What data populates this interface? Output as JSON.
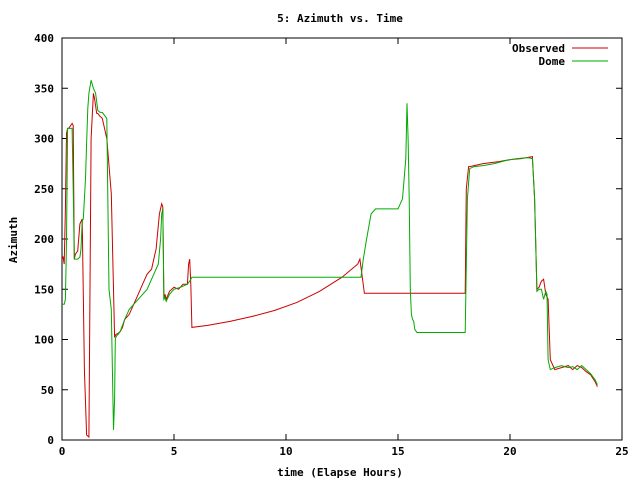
{
  "chart_data": {
    "type": "line",
    "title": "5: Azimuth vs. Time",
    "xlabel": "time (Elapse Hours)",
    "ylabel": "Azimuth",
    "xlim": [
      0,
      25
    ],
    "ylim": [
      0,
      400
    ],
    "xticks": [
      0,
      5,
      10,
      15,
      20,
      25
    ],
    "yticks": [
      0,
      50,
      100,
      150,
      200,
      250,
      300,
      350,
      400
    ],
    "grid": false,
    "legend_position": "top-right",
    "series": [
      {
        "name": "Observed",
        "color": "#cc0000",
        "x": [
          0.0,
          0.05,
          0.1,
          0.15,
          0.2,
          0.25,
          0.3,
          0.45,
          0.5,
          0.55,
          0.6,
          0.7,
          0.8,
          0.9,
          1.0,
          1.1,
          1.15,
          1.2,
          1.3,
          1.4,
          1.45,
          1.55,
          1.6,
          1.7,
          1.8,
          2.0,
          2.2,
          2.3,
          2.35,
          2.4,
          2.5,
          2.6,
          2.7,
          2.8,
          3.0,
          3.2,
          3.4,
          3.6,
          3.8,
          4.0,
          4.1,
          4.2,
          4.35,
          4.45,
          4.5,
          4.55,
          4.6,
          4.65,
          4.8,
          5.0,
          5.2,
          5.4,
          5.6,
          5.65,
          5.7,
          5.75,
          5.8,
          6.5,
          7.5,
          8.5,
          9.5,
          10.5,
          11.5,
          12.5,
          13.2,
          13.3,
          13.5,
          14.5,
          16.0,
          17.5,
          18.0,
          18.05,
          18.15,
          18.2,
          18.8,
          19.5,
          20.0,
          20.5,
          21.0,
          21.1,
          21.2,
          21.3,
          21.35,
          21.4,
          21.5,
          21.6,
          21.7,
          21.8,
          22.0,
          22.3,
          22.6,
          22.8,
          23.0,
          23.2,
          23.4,
          23.6,
          23.8,
          23.9
        ],
        "y": [
          180,
          182,
          175,
          230,
          305,
          310,
          310,
          315,
          313,
          180,
          185,
          188,
          215,
          220,
          70,
          5,
          4,
          3,
          300,
          345,
          340,
          325,
          325,
          322,
          320,
          300,
          245,
          150,
          102,
          105,
          106,
          108,
          112,
          120,
          125,
          135,
          145,
          155,
          165,
          170,
          180,
          190,
          225,
          235,
          232,
          140,
          145,
          140,
          148,
          152,
          150,
          155,
          155,
          175,
          180,
          155,
          112,
          114,
          118,
          123,
          129,
          137,
          148,
          162,
          175,
          180,
          146,
          146,
          146,
          146,
          146,
          250,
          272,
          272,
          275,
          277,
          279,
          280,
          282,
          240,
          150,
          152,
          155,
          158,
          160,
          145,
          140,
          80,
          70,
          72,
          74,
          70,
          74,
          72,
          68,
          65,
          58,
          53
        ]
      },
      {
        "name": "Dome",
        "color": "#00aa00",
        "x": [
          0.0,
          0.05,
          0.1,
          0.15,
          0.18,
          0.2,
          0.25,
          0.3,
          0.45,
          0.5,
          0.55,
          0.6,
          0.7,
          0.8,
          0.85,
          0.9,
          0.95,
          1.05,
          1.1,
          1.15,
          1.2,
          1.3,
          1.4,
          1.5,
          1.6,
          1.7,
          1.8,
          2.0,
          2.1,
          2.2,
          2.3,
          2.35,
          2.38,
          2.4,
          2.45,
          2.5,
          2.6,
          2.8,
          3.0,
          3.4,
          3.8,
          4.1,
          4.3,
          4.4,
          4.45,
          4.5,
          4.55,
          4.6,
          4.65,
          4.8,
          5.0,
          5.3,
          5.6,
          5.7,
          5.75,
          5.8,
          7.0,
          9.0,
          11.0,
          13.0,
          13.3,
          13.35,
          13.45,
          13.6,
          13.8,
          14.0,
          14.5,
          15.0,
          15.2,
          15.35,
          15.4,
          15.45,
          15.5,
          15.55,
          15.6,
          15.65,
          15.7,
          15.75,
          15.85,
          16.0,
          16.5,
          17.0,
          17.5,
          18.0,
          18.1,
          18.2,
          18.4,
          18.8,
          19.3,
          19.8,
          20.3,
          20.8,
          21.0,
          21.1,
          21.2,
          21.3,
          21.4,
          21.5,
          21.6,
          21.65,
          21.7,
          21.8,
          22.0,
          22.3,
          22.6,
          22.8,
          23.0,
          23.2,
          23.4,
          23.6,
          23.8,
          23.9
        ],
        "y": [
          135,
          135,
          135,
          140,
          170,
          200,
          310,
          310,
          310,
          250,
          180,
          180,
          180,
          182,
          190,
          218,
          220,
          260,
          295,
          330,
          345,
          358,
          350,
          345,
          328,
          326,
          326,
          320,
          150,
          130,
          10,
          40,
          100,
          102,
          104,
          105,
          108,
          120,
          130,
          140,
          150,
          165,
          175,
          200,
          225,
          230,
          140,
          142,
          138,
          145,
          150,
          152,
          155,
          158,
          160,
          162,
          162,
          162,
          162,
          162,
          162,
          162,
          180,
          200,
          225,
          230,
          230,
          230,
          240,
          280,
          335,
          300,
          240,
          150,
          125,
          120,
          118,
          110,
          107,
          107,
          107,
          107,
          107,
          107,
          240,
          270,
          272,
          273,
          275,
          278,
          280,
          281,
          280,
          240,
          148,
          150,
          150,
          140,
          148,
          145,
          80,
          70,
          72,
          74,
          72,
          73,
          70,
          74,
          70,
          66,
          60,
          55
        ]
      }
    ]
  }
}
